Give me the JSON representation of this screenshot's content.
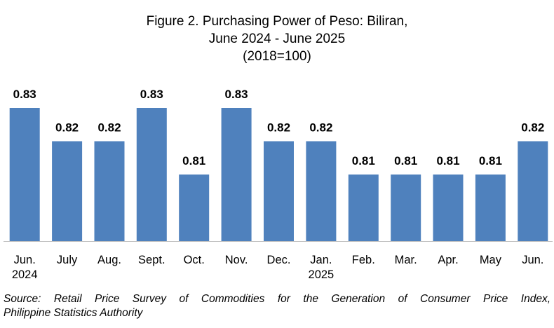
{
  "chart_data": {
    "type": "bar",
    "title_lines": [
      "Figure 2. Purchasing Power of Peso: Biliran,",
      "June 2024 - June 2025",
      "(2018=100)"
    ],
    "categories": [
      [
        "Jun.",
        "2024"
      ],
      [
        "July"
      ],
      [
        "Aug."
      ],
      [
        "Sept."
      ],
      [
        "Oct."
      ],
      [
        "Nov."
      ],
      [
        "Dec."
      ],
      [
        "Jan.",
        "2025"
      ],
      [
        "Feb."
      ],
      [
        "Mar."
      ],
      [
        "Apr."
      ],
      [
        "May"
      ],
      [
        "Jun."
      ]
    ],
    "values": [
      0.83,
      0.82,
      0.82,
      0.83,
      0.81,
      0.83,
      0.82,
      0.82,
      0.81,
      0.81,
      0.81,
      0.81,
      0.82
    ],
    "data_labels": [
      "0.83",
      "0.82",
      "0.82",
      "0.83",
      "0.81",
      "0.83",
      "0.82",
      "0.82",
      "0.81",
      "0.81",
      "0.81",
      "0.81",
      "0.82"
    ],
    "ylim": [
      0.79,
      0.83
    ],
    "bar_color": "#4f81bd",
    "grid": false,
    "legend": "none"
  },
  "source": {
    "line1": "Source: Retail Price Survey of Commodities for the Generation of Consumer Price Index,",
    "line2": "Philippine Statistics Authority"
  }
}
